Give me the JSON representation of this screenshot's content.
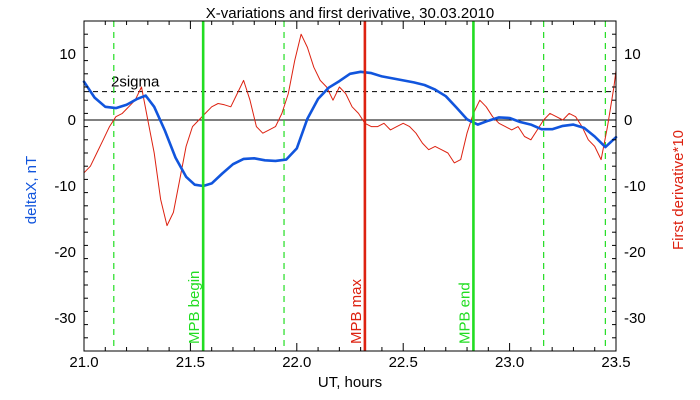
{
  "chart_data": {
    "type": "line",
    "title": "X-variations and first derivative, 30.03.2010",
    "xlabel": "UT, hours",
    "ylabel_left": "deltaX, nT",
    "ylabel_right": "First derivative*10",
    "xlim": [
      21.0,
      23.5
    ],
    "ylim": [
      -35,
      15
    ],
    "x_ticks": [
      "21.0",
      "21.5",
      "22.0",
      "22.5",
      "23.0",
      "23.5"
    ],
    "x_tick_values": [
      21.0,
      21.5,
      22.0,
      22.5,
      23.0,
      23.5
    ],
    "y_ticks": [
      "10",
      "0",
      "-10",
      "-20",
      "-30"
    ],
    "y_tick_values": [
      10,
      0,
      -10,
      -20,
      -30
    ],
    "colors": {
      "deltax": "#1155dd",
      "derivative": "#dd2211",
      "green": "#22dd22",
      "red": "#dd2211",
      "axis": "#000000"
    },
    "threshold": {
      "label": "2sigma",
      "y": 4.3
    },
    "zero_line_y": 0,
    "vlines_dashed": [
      21.14,
      21.94,
      23.16,
      23.45
    ],
    "vlines_solid": [
      {
        "x": 21.56,
        "label": "MPB begin",
        "color": "green"
      },
      {
        "x": 22.32,
        "label": "MPB max",
        "color": "red"
      },
      {
        "x": 22.83,
        "label": "MPB end",
        "color": "green"
      }
    ],
    "series": [
      {
        "id": "deltax",
        "x": [
          21.0,
          21.05,
          21.1,
          21.15,
          21.2,
          21.25,
          21.29,
          21.33,
          21.38,
          21.43,
          21.48,
          21.52,
          21.56,
          21.6,
          21.65,
          21.7,
          21.75,
          21.8,
          21.85,
          21.9,
          21.95,
          22.0,
          22.05,
          22.1,
          22.15,
          22.2,
          22.25,
          22.3,
          22.35,
          22.4,
          22.45,
          22.5,
          22.55,
          22.6,
          22.65,
          22.7,
          22.75,
          22.8,
          22.85,
          22.9,
          22.95,
          23.0,
          23.05,
          23.1,
          23.15,
          23.2,
          23.25,
          23.3,
          23.35,
          23.4,
          23.45,
          23.5
        ],
        "values": [
          5.8,
          3.4,
          2.0,
          1.8,
          2.3,
          3.2,
          3.7,
          2.0,
          -1.6,
          -5.7,
          -8.6,
          -9.8,
          -10.0,
          -9.6,
          -8.1,
          -6.7,
          -5.9,
          -5.8,
          -6.1,
          -6.2,
          -6.0,
          -4.3,
          0.2,
          3.2,
          4.9,
          5.9,
          7.0,
          7.3,
          7.1,
          6.6,
          6.3,
          6.0,
          5.7,
          5.3,
          4.6,
          3.6,
          1.9,
          0.1,
          -0.7,
          -0.1,
          0.4,
          0.3,
          -0.3,
          -0.7,
          -1.4,
          -1.4,
          -0.9,
          -0.7,
          -1.2,
          -2.5,
          -4.1,
          -2.6
        ]
      },
      {
        "id": "derivative",
        "x": [
          21.0,
          21.03,
          21.06,
          21.09,
          21.12,
          21.15,
          21.18,
          21.21,
          21.24,
          21.27,
          21.3,
          21.33,
          21.36,
          21.39,
          21.42,
          21.45,
          21.48,
          21.51,
          21.54,
          21.57,
          21.6,
          21.63,
          21.66,
          21.69,
          21.72,
          21.75,
          21.78,
          21.81,
          21.84,
          21.87,
          21.9,
          21.93,
          21.96,
          21.99,
          22.02,
          22.05,
          22.08,
          22.11,
          22.14,
          22.17,
          22.2,
          22.23,
          22.26,
          22.29,
          22.32,
          22.35,
          22.38,
          22.41,
          22.44,
          22.47,
          22.5,
          22.53,
          22.56,
          22.59,
          22.62,
          22.65,
          22.68,
          22.71,
          22.74,
          22.77,
          22.8,
          22.83,
          22.86,
          22.89,
          22.92,
          22.95,
          22.98,
          23.01,
          23.04,
          23.07,
          23.1,
          23.13,
          23.16,
          23.19,
          23.22,
          23.25,
          23.28,
          23.31,
          23.34,
          23.37,
          23.4,
          23.43,
          23.46,
          23.49,
          23.5
        ],
        "values": [
          -8,
          -7,
          -5,
          -3,
          -1,
          0.5,
          1,
          2,
          3,
          5,
          0,
          -5,
          -12,
          -16,
          -14,
          -9,
          -4,
          -1,
          0,
          1,
          2,
          2.5,
          2.3,
          2,
          4,
          6,
          3,
          -1,
          -2,
          -1.5,
          -1,
          1,
          4,
          9,
          13,
          11,
          8,
          6,
          5,
          3,
          5,
          4,
          2,
          1,
          -0.5,
          -1,
          -1,
          -0.5,
          -1.5,
          -1,
          -0.5,
          -1,
          -2,
          -3.5,
          -4.5,
          -4,
          -4.5,
          -5,
          -6.5,
          -6,
          -2,
          1,
          3,
          2,
          0.5,
          -0.5,
          -1,
          -1.5,
          -1,
          -2.5,
          -3,
          -1.5,
          0,
          1,
          0.5,
          0,
          1,
          0.5,
          -1,
          -3,
          -4,
          -6,
          -1,
          5,
          7.5
        ]
      }
    ]
  }
}
